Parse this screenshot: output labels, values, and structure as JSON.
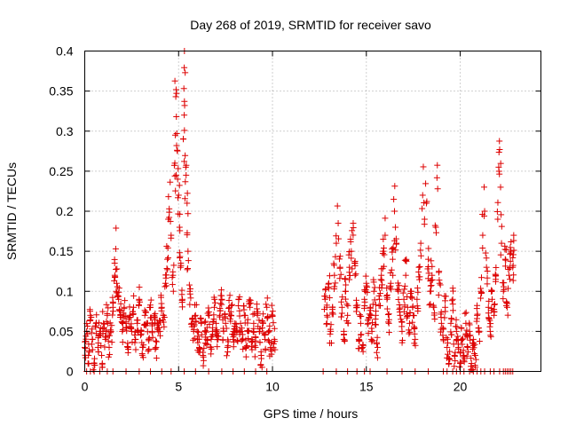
{
  "chart_data": {
    "type": "scatter",
    "title": "Day 268 of 2019, SRMTID for receiver savo",
    "xlabel": "GPS time / hours",
    "ylabel": "SRMTID / TECUs",
    "xlim": [
      0,
      24.3
    ],
    "ylim": [
      0,
      0.4
    ],
    "x_ticks": [
      0,
      5,
      10,
      15,
      20
    ],
    "x_tick_labels": [
      "0",
      "5",
      "10",
      "15",
      "20"
    ],
    "y_ticks": [
      0,
      0.05,
      0.1,
      0.15,
      0.2,
      0.25,
      0.3,
      0.35,
      0.4
    ],
    "y_tick_labels": [
      "0",
      "0.05",
      "0.1",
      "0.15",
      "0.2",
      "0.25",
      "0.3",
      "0.35",
      "0.4"
    ],
    "grid": true,
    "marker": "+",
    "series_color": "#dd0000",
    "series": [
      {
        "name": "SRMTID",
        "points": [
          [
            0.0,
            0.03
          ],
          [
            0.1,
            0.05
          ],
          [
            0.2,
            0.02
          ],
          [
            0.3,
            0.07
          ],
          [
            0.4,
            0.04
          ],
          [
            0.5,
            0.01
          ],
          [
            0.6,
            0.06
          ],
          [
            0.7,
            0.03
          ],
          [
            0.8,
            0.05
          ],
          [
            0.9,
            0.02
          ],
          [
            1.0,
            0.06
          ],
          [
            1.1,
            0.04
          ],
          [
            1.2,
            0.07
          ],
          [
            1.3,
            0.03
          ],
          [
            1.4,
            0.05
          ],
          [
            1.5,
            0.08
          ],
          [
            1.6,
            0.12
          ],
          [
            1.65,
            0.153
          ],
          [
            1.7,
            0.11
          ],
          [
            1.8,
            0.09
          ],
          [
            1.9,
            0.07
          ],
          [
            2.0,
            0.05
          ],
          [
            2.1,
            0.08
          ],
          [
            2.2,
            0.06
          ],
          [
            2.3,
            0.03
          ],
          [
            2.4,
            0.07
          ],
          [
            2.5,
            0.05
          ],
          [
            2.6,
            0.08
          ],
          [
            2.7,
            0.04
          ],
          [
            2.8,
            0.06
          ],
          [
            2.9,
            0.09
          ],
          [
            3.0,
            0.05
          ],
          [
            3.1,
            0.03
          ],
          [
            3.2,
            0.07
          ],
          [
            3.3,
            0.06
          ],
          [
            3.4,
            0.04
          ],
          [
            3.5,
            0.08
          ],
          [
            3.6,
            0.05
          ],
          [
            3.7,
            0.07
          ],
          [
            3.8,
            0.03
          ],
          [
            3.9,
            0.06
          ],
          [
            4.0,
            0.05
          ],
          [
            4.1,
            0.08
          ],
          [
            4.2,
            0.07
          ],
          [
            4.3,
            0.11
          ],
          [
            4.4,
            0.14
          ],
          [
            4.45,
            0.19
          ],
          [
            4.5,
            0.203
          ],
          [
            4.6,
            0.17
          ],
          [
            4.7,
            0.12
          ],
          [
            4.8,
            0.26
          ],
          [
            4.82,
            0.295
          ],
          [
            4.85,
            0.343
          ],
          [
            4.88,
            0.318
          ],
          [
            4.9,
            0.297
          ],
          [
            4.95,
            0.24
          ],
          [
            5.0,
            0.22
          ],
          [
            5.05,
            0.18
          ],
          [
            5.1,
            0.13
          ],
          [
            5.2,
            0.09
          ],
          [
            5.25,
            0.29
          ],
          [
            5.3,
            0.32
          ],
          [
            5.32,
            0.332
          ],
          [
            5.35,
            0.373
          ],
          [
            5.38,
            0.255
          ],
          [
            5.4,
            0.245
          ],
          [
            5.45,
            0.21
          ],
          [
            5.5,
            0.15
          ],
          [
            5.6,
            0.1
          ],
          [
            5.7,
            0.06
          ],
          [
            5.8,
            0.05
          ],
          [
            5.9,
            0.07
          ],
          [
            6.0,
            0.04
          ],
          [
            6.1,
            0.03
          ],
          [
            6.2,
            0.06
          ],
          [
            6.3,
            0.02
          ],
          [
            6.4,
            0.05
          ],
          [
            6.5,
            0.04
          ],
          [
            6.6,
            0.07
          ],
          [
            6.7,
            0.03
          ],
          [
            6.8,
            0.05
          ],
          [
            6.9,
            0.08
          ],
          [
            7.0,
            0.06
          ],
          [
            7.1,
            0.04
          ],
          [
            7.2,
            0.07
          ],
          [
            7.3,
            0.09
          ],
          [
            7.4,
            0.05
          ],
          [
            7.5,
            0.06
          ],
          [
            7.6,
            0.03
          ],
          [
            7.7,
            0.08
          ],
          [
            7.8,
            0.07
          ],
          [
            7.9,
            0.04
          ],
          [
            8.0,
            0.06
          ],
          [
            8.1,
            0.05
          ],
          [
            8.2,
            0.09
          ],
          [
            8.3,
            0.06
          ],
          [
            8.4,
            0.04
          ],
          [
            8.5,
            0.07
          ],
          [
            8.6,
            0.03
          ],
          [
            8.7,
            0.05
          ],
          [
            8.8,
            0.08
          ],
          [
            8.9,
            0.04
          ],
          [
            9.0,
            0.06
          ],
          [
            9.1,
            0.03
          ],
          [
            9.2,
            0.07
          ],
          [
            9.3,
            0.05
          ],
          [
            9.4,
            0.02
          ],
          [
            9.5,
            0.06
          ],
          [
            9.6,
            0.04
          ],
          [
            9.7,
            0.08
          ],
          [
            9.8,
            0.05
          ],
          [
            9.9,
            0.03
          ],
          [
            10.0,
            0.07
          ],
          [
            10.1,
            0.04
          ],
          [
            12.8,
            0.09
          ],
          [
            12.9,
            0.07
          ],
          [
            13.0,
            0.11
          ],
          [
            13.1,
            0.05
          ],
          [
            13.2,
            0.08
          ],
          [
            13.3,
            0.12
          ],
          [
            13.4,
            0.16
          ],
          [
            13.5,
            0.185
          ],
          [
            13.6,
            0.13
          ],
          [
            13.7,
            0.08
          ],
          [
            13.8,
            0.05
          ],
          [
            13.9,
            0.1
          ],
          [
            14.0,
            0.07
          ],
          [
            14.1,
            0.13
          ],
          [
            14.2,
            0.15
          ],
          [
            14.3,
            0.185
          ],
          [
            14.4,
            0.12
          ],
          [
            14.5,
            0.08
          ],
          [
            14.6,
            0.04
          ],
          [
            14.7,
            0.06
          ],
          [
            14.8,
            0.03
          ],
          [
            14.9,
            0.09
          ],
          [
            15.0,
            0.11
          ],
          [
            15.1,
            0.06
          ],
          [
            15.2,
            0.08
          ],
          [
            15.3,
            0.05
          ],
          [
            15.4,
            0.1
          ],
          [
            15.5,
            0.07
          ],
          [
            15.6,
            0.03
          ],
          [
            15.7,
            0.09
          ],
          [
            15.8,
            0.12
          ],
          [
            15.9,
            0.15
          ],
          [
            16.0,
            0.17
          ],
          [
            16.1,
            0.09
          ],
          [
            16.2,
            0.06
          ],
          [
            16.3,
            0.11
          ],
          [
            16.4,
            0.14
          ],
          [
            16.5,
            0.2
          ],
          [
            16.55,
            0.18
          ],
          [
            16.6,
            0.16
          ],
          [
            16.7,
            0.1
          ],
          [
            16.8,
            0.07
          ],
          [
            16.9,
            0.05
          ],
          [
            17.0,
            0.09
          ],
          [
            17.1,
            0.12
          ],
          [
            17.2,
            0.08
          ],
          [
            17.3,
            0.06
          ],
          [
            17.4,
            0.1
          ],
          [
            17.5,
            0.07
          ],
          [
            17.6,
            0.04
          ],
          [
            17.7,
            0.09
          ],
          [
            17.8,
            0.13
          ],
          [
            17.9,
            0.16
          ],
          [
            18.0,
            0.22
          ],
          [
            18.1,
            0.19
          ],
          [
            18.2,
            0.21
          ],
          [
            18.3,
            0.14
          ],
          [
            18.4,
            0.1
          ],
          [
            18.5,
            0.12
          ],
          [
            18.6,
            0.08
          ],
          [
            18.7,
            0.18
          ],
          [
            18.8,
            0.228
          ],
          [
            18.9,
            0.11
          ],
          [
            19.0,
            0.06
          ],
          [
            19.1,
            0.04
          ],
          [
            19.2,
            0.08
          ],
          [
            19.3,
            0.03
          ],
          [
            19.4,
            0.01
          ],
          [
            19.5,
            0.06
          ],
          [
            19.6,
            0.09
          ],
          [
            19.7,
            0.02
          ],
          [
            19.8,
            0.05
          ],
          [
            19.9,
            0.03
          ],
          [
            20.0,
            0.01
          ],
          [
            20.1,
            0.04
          ],
          [
            20.2,
            0.02
          ],
          [
            20.3,
            0.06
          ],
          [
            20.4,
            0.03
          ],
          [
            20.5,
            0.05
          ],
          [
            20.6,
            0.01
          ],
          [
            20.7,
            0.04
          ],
          [
            20.8,
            0.02
          ],
          [
            20.9,
            0.07
          ],
          [
            21.0,
            0.05
          ],
          [
            21.1,
            0.1
          ],
          [
            21.2,
            0.17
          ],
          [
            21.3,
            0.2
          ],
          [
            21.4,
            0.13
          ],
          [
            21.5,
            0.08
          ],
          [
            21.6,
            0.05
          ],
          [
            21.7,
            0.09
          ],
          [
            21.8,
            0.07
          ],
          [
            21.9,
            0.12
          ],
          [
            22.0,
            0.19
          ],
          [
            22.05,
            0.255
          ],
          [
            22.1,
            0.277
          ],
          [
            22.15,
            0.23
          ],
          [
            22.2,
            0.16
          ],
          [
            22.3,
            0.1
          ],
          [
            22.4,
            0.14
          ],
          [
            22.5,
            0.08
          ],
          [
            22.6,
            0.12
          ],
          [
            22.7,
            0.15
          ],
          [
            22.8,
            0.13
          ],
          [
            22.85,
            0.17
          ]
        ]
      }
    ],
    "zero_points_x": [
      0.1,
      0.3,
      0.5,
      0.8,
      1.2,
      1.5,
      2.2,
      2.9,
      3.5,
      4.1,
      4.6,
      5.3,
      5.9,
      6.6,
      7.3,
      7.9,
      8.5,
      9.1,
      9.7,
      12.7,
      13.4,
      14.0,
      14.5,
      14.9,
      15.2,
      16.1,
      16.9,
      17.6,
      18.3,
      19.1,
      19.3,
      19.6,
      19.8,
      20.0,
      20.2,
      20.5,
      20.7,
      20.9,
      21.1,
      21.3,
      21.6,
      21.8,
      22.1,
      22.3,
      22.4,
      22.5,
      22.6,
      22.7,
      22.8
    ]
  }
}
